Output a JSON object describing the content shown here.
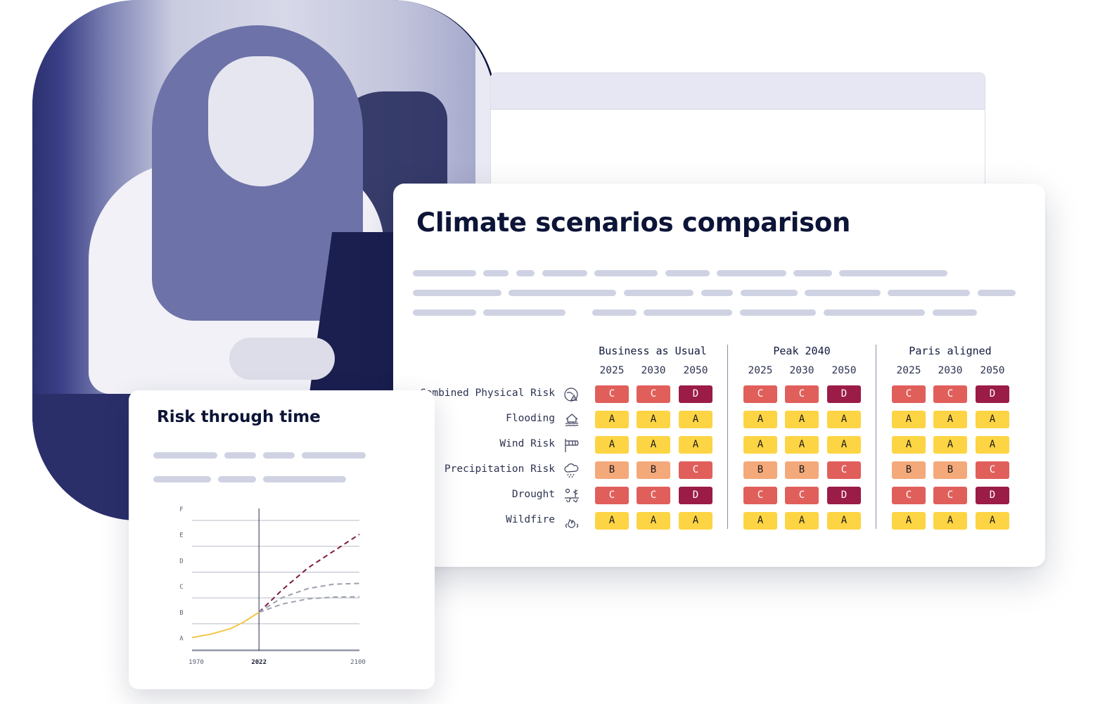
{
  "card": {
    "title": "Climate scenarios comparison",
    "scenarios": [
      {
        "name": "Business as Usual",
        "years": [
          "2025",
          "2030",
          "2050"
        ]
      },
      {
        "name": "Peak 2040",
        "years": [
          "2025",
          "2030",
          "2050"
        ]
      },
      {
        "name": "Paris aligned",
        "years": [
          "2025",
          "2030",
          "2050"
        ]
      }
    ],
    "rows": [
      {
        "label": "Combined Physical Risk",
        "icon": "combined-risk-icon",
        "ratings": [
          "C",
          "C",
          "D",
          "C",
          "C",
          "D",
          "C",
          "C",
          "D"
        ]
      },
      {
        "label": "Flooding",
        "icon": "flood-icon",
        "ratings": [
          "A",
          "A",
          "A",
          "A",
          "A",
          "A",
          "A",
          "A",
          "A"
        ]
      },
      {
        "label": "Wind Risk",
        "icon": "windsock-icon",
        "ratings": [
          "A",
          "A",
          "A",
          "A",
          "A",
          "A",
          "A",
          "A",
          "A"
        ]
      },
      {
        "label": "Precipitation Risk",
        "icon": "rain-cloud-icon",
        "ratings": [
          "B",
          "B",
          "C",
          "B",
          "B",
          "C",
          "B",
          "B",
          "C"
        ]
      },
      {
        "label": "Drought",
        "icon": "drought-icon",
        "ratings": [
          "C",
          "C",
          "D",
          "C",
          "C",
          "D",
          "C",
          "C",
          "D"
        ]
      },
      {
        "label": "Wildfire",
        "icon": "wildfire-icon",
        "ratings": [
          "A",
          "A",
          "A",
          "A",
          "A",
          "A",
          "A",
          "A",
          "A"
        ]
      }
    ],
    "rating_colors": {
      "A": "#fdd443",
      "B": "#f4a97b",
      "C": "#e05f5b",
      "D": "#9b1c47"
    },
    "rating_text_colors": {
      "A": "#1b1b1b",
      "B": "#1b1b1b",
      "C": "#ffffff",
      "D": "#ffffff"
    }
  },
  "small_card": {
    "title": "Risk through time",
    "y_ticks": [
      "A",
      "B",
      "C",
      "D",
      "E",
      "F"
    ],
    "x_ticks": [
      "1970",
      "2022",
      "2100"
    ]
  },
  "chart_data": {
    "type": "line",
    "title": "Risk through time",
    "xlabel": "",
    "ylabel": "",
    "x_ticks": [
      "1970",
      "2022",
      "2100"
    ],
    "y_categories": [
      "A",
      "B",
      "C",
      "D",
      "E",
      "F"
    ],
    "ylim": [
      0,
      5.5
    ],
    "xlim": [
      1970,
      2100
    ],
    "grid": true,
    "present_marker": 2022,
    "series": [
      {
        "style": "historical",
        "color": "#f3c64c",
        "x": [
          1970,
          1985,
          2000,
          2010,
          2022
        ],
        "y": [
          0.5,
          0.64,
          0.85,
          1.1,
          1.48
        ]
      },
      {
        "style": "projection-high",
        "color": "#7d1a3a",
        "x": [
          2022,
          2040,
          2060,
          2080,
          2100
        ],
        "y": [
          1.48,
          2.35,
          3.2,
          3.85,
          4.5
        ]
      },
      {
        "style": "projection-mid",
        "color": "#9da0ae",
        "x": [
          2022,
          2040,
          2060,
          2080,
          2100
        ],
        "y": [
          1.48,
          2.05,
          2.4,
          2.57,
          2.6
        ]
      },
      {
        "style": "projection-low",
        "color": "#9da0ae",
        "x": [
          2022,
          2040,
          2060,
          2080,
          2100
        ],
        "y": [
          1.48,
          1.8,
          2.0,
          2.07,
          2.08
        ]
      }
    ]
  }
}
